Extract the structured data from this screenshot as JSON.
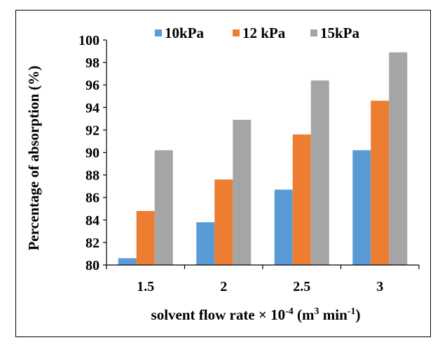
{
  "chart_data": {
    "type": "bar",
    "categories": [
      "1.5",
      "2",
      "2.5",
      "3"
    ],
    "series": [
      {
        "name": "10kPa",
        "values": [
          80.6,
          83.8,
          86.7,
          90.2
        ],
        "color": "#5b9bd5"
      },
      {
        "name": "12 kPa",
        "values": [
          84.8,
          87.6,
          91.6,
          94.6
        ],
        "color": "#ed7d31"
      },
      {
        "name": "15kPa",
        "values": [
          90.2,
          92.9,
          96.4,
          98.9
        ],
        "color": "#a5a5a5"
      }
    ],
    "ylim": [
      80,
      100
    ],
    "yticks": [
      "80",
      "82",
      "84",
      "86",
      "88",
      "90",
      "92",
      "94",
      "96",
      "98",
      "100"
    ],
    "ylabel": "Percentage of absorption (%)",
    "xlabel": {
      "pre": "solvent flow rate × 10",
      "exp1": "-4",
      "mid": " (m",
      "exp2": "3",
      "mid2": " min",
      "exp3": "-1",
      "post": ")"
    },
    "legend_position": "top",
    "grid": false
  }
}
